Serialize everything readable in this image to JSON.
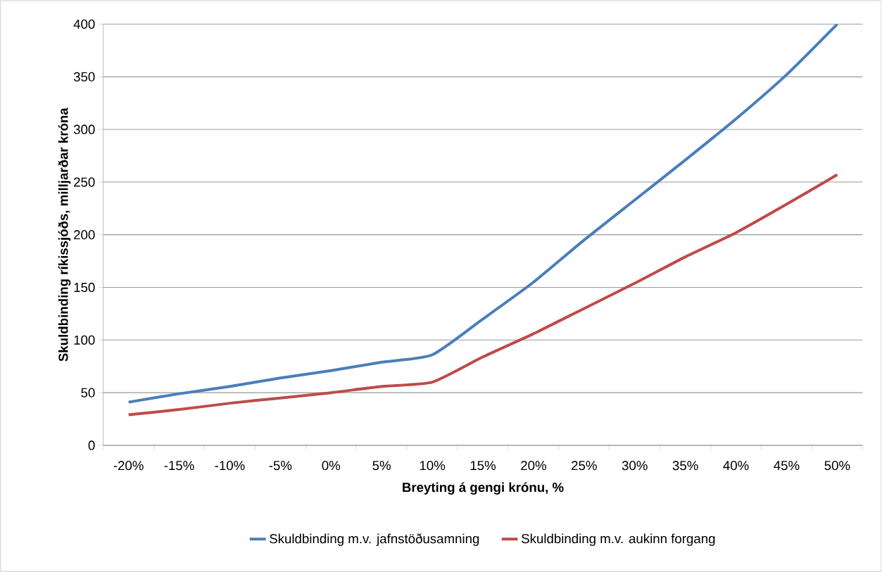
{
  "chart_data": {
    "type": "line",
    "xlabel": "Breyting á gengi krónu, %",
    "ylabel": "Skuldbinding ríkissjóðs, milljarðar króna",
    "categories": [
      "-20%",
      "-15%",
      "-10%",
      "-5%",
      "0%",
      "5%",
      "10%",
      "15%",
      "20%",
      "25%",
      "30%",
      "35%",
      "40%",
      "45%",
      "50%"
    ],
    "series": [
      {
        "name": "Skuldbinding m.v. jafnstöðusamning",
        "color": "#4a7ebb",
        "values": [
          41,
          49,
          56,
          64,
          71,
          79,
          86,
          120,
          155,
          195,
          233,
          271,
          310,
          352,
          400
        ]
      },
      {
        "name": "Skuldbinding m.v. aukinn forgang",
        "color": "#be4b48",
        "values": [
          29,
          34,
          40,
          45,
          50,
          56,
          60,
          84,
          106,
          130,
          154,
          179,
          202,
          229,
          257
        ]
      }
    ],
    "ylim": [
      0,
      400
    ],
    "yticks": [
      0,
      50,
      100,
      150,
      200,
      250,
      300,
      350,
      400
    ],
    "grid": "y",
    "legend": "bottom",
    "line_style": "solid",
    "marker": "none"
  }
}
